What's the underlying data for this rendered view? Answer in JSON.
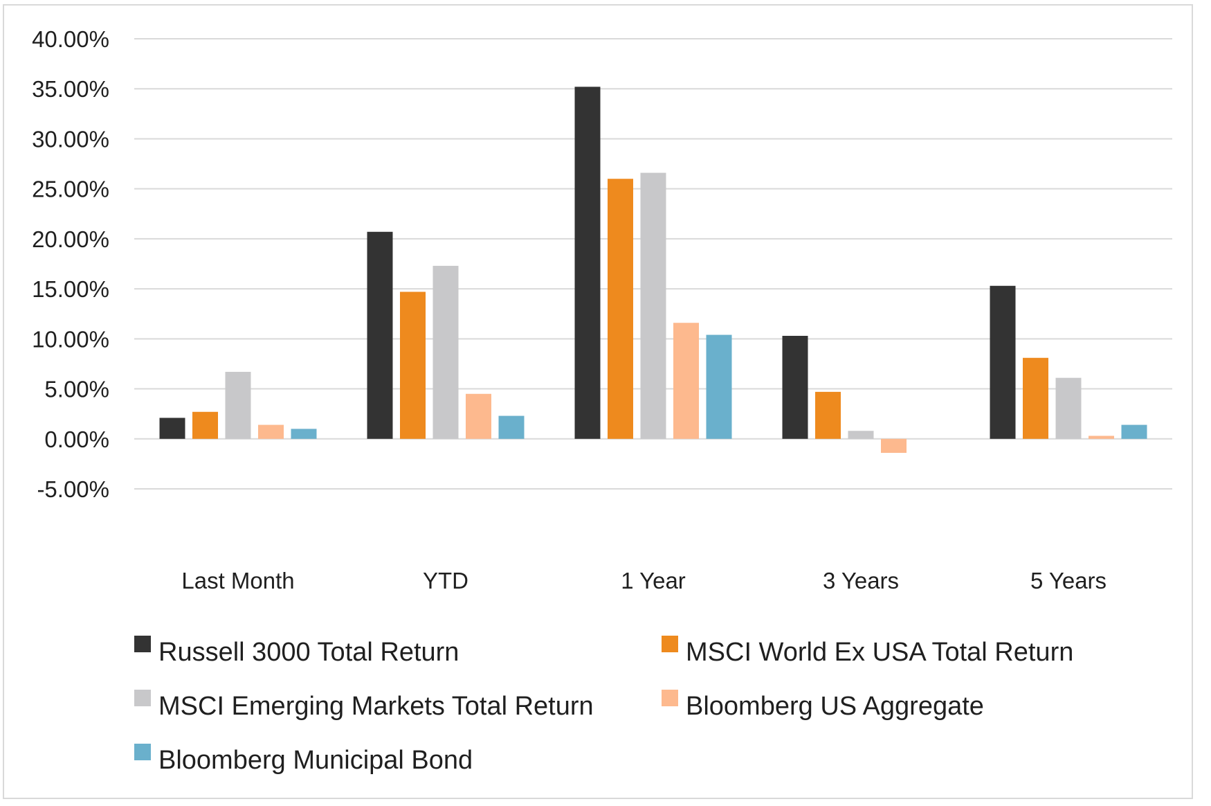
{
  "chart_data": {
    "type": "bar",
    "categories": [
      "Last Month",
      "YTD",
      "1 Year",
      "3 Years",
      "5 Years"
    ],
    "series": [
      {
        "name": "Russell 3000 Total Return",
        "color": "#333333",
        "values": [
          2.1,
          20.7,
          35.2,
          10.3,
          15.3
        ]
      },
      {
        "name": "MSCI World Ex USA Total Return",
        "color": "#ee8a1e",
        "values": [
          2.7,
          14.7,
          26.0,
          4.7,
          8.1
        ]
      },
      {
        "name": "MSCI Emerging Markets Total Return",
        "color": "#c8c8ca",
        "values": [
          6.7,
          17.3,
          26.6,
          0.8,
          6.1
        ]
      },
      {
        "name": "Bloomberg US Aggregate",
        "color": "#fdb98e",
        "values": [
          1.4,
          4.5,
          11.6,
          -1.4,
          0.3
        ]
      },
      {
        "name": "Bloomberg Municipal Bond",
        "color": "#6ab0cc",
        "values": [
          1.0,
          2.3,
          10.4,
          0.0,
          1.4
        ]
      }
    ],
    "ylim": [
      -5,
      40
    ],
    "y_ticks": [
      40,
      35,
      30,
      25,
      20,
      15,
      10,
      5,
      0,
      -5
    ],
    "y_tick_labels": [
      "40.00%",
      "35.00%",
      "30.00%",
      "25.00%",
      "20.00%",
      "15.00%",
      "10.00%",
      "5.00%",
      "0.00%",
      "-5.00%"
    ],
    "grid": true,
    "legend_position": "bottom",
    "title": "",
    "xlabel": "",
    "ylabel": ""
  }
}
